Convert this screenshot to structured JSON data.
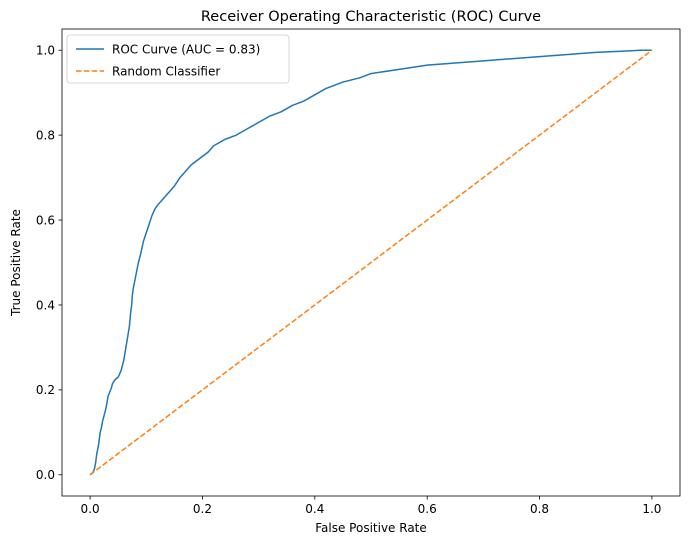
{
  "chart_data": {
    "type": "line",
    "title": "Receiver Operating Characteristic (ROC) Curve",
    "xlabel": "False Positive Rate",
    "ylabel": "True Positive Rate",
    "xlim": [
      -0.05,
      1.05
    ],
    "ylim": [
      -0.05,
      1.05
    ],
    "xticks": [
      "0.0",
      "0.2",
      "0.4",
      "0.6",
      "0.8",
      "1.0"
    ],
    "yticks": [
      "0.0",
      "0.2",
      "0.4",
      "0.6",
      "0.8",
      "1.0"
    ],
    "xtick_values": [
      0.0,
      0.2,
      0.4,
      0.6,
      0.8,
      1.0
    ],
    "ytick_values": [
      0.0,
      0.2,
      0.4,
      0.6,
      0.8,
      1.0
    ],
    "grid": false,
    "legend_position": "top-left",
    "series": [
      {
        "name": "ROC Curve (AUC = 0.83)",
        "color": "#1f77b4",
        "style": "solid",
        "x": [
          0.0,
          0.005,
          0.008,
          0.01,
          0.012,
          0.015,
          0.017,
          0.018,
          0.02,
          0.022,
          0.025,
          0.028,
          0.03,
          0.032,
          0.035,
          0.038,
          0.04,
          0.045,
          0.05,
          0.055,
          0.06,
          0.065,
          0.07,
          0.072,
          0.074,
          0.075,
          0.077,
          0.08,
          0.083,
          0.086,
          0.09,
          0.095,
          0.1,
          0.105,
          0.11,
          0.115,
          0.12,
          0.13,
          0.14,
          0.15,
          0.16,
          0.17,
          0.18,
          0.19,
          0.2,
          0.21,
          0.22,
          0.24,
          0.26,
          0.28,
          0.3,
          0.32,
          0.34,
          0.36,
          0.38,
          0.4,
          0.42,
          0.45,
          0.48,
          0.5,
          0.55,
          0.6,
          0.65,
          0.7,
          0.75,
          0.8,
          0.85,
          0.9,
          0.95,
          0.98,
          1.0
        ],
        "y": [
          0.0,
          0.005,
          0.015,
          0.03,
          0.05,
          0.07,
          0.09,
          0.1,
          0.11,
          0.125,
          0.14,
          0.155,
          0.17,
          0.185,
          0.195,
          0.205,
          0.215,
          0.225,
          0.23,
          0.245,
          0.27,
          0.31,
          0.35,
          0.38,
          0.4,
          0.42,
          0.44,
          0.46,
          0.48,
          0.5,
          0.52,
          0.55,
          0.57,
          0.59,
          0.61,
          0.625,
          0.635,
          0.65,
          0.665,
          0.68,
          0.7,
          0.715,
          0.73,
          0.74,
          0.75,
          0.76,
          0.775,
          0.79,
          0.8,
          0.815,
          0.83,
          0.845,
          0.855,
          0.87,
          0.88,
          0.895,
          0.91,
          0.925,
          0.935,
          0.945,
          0.955,
          0.965,
          0.97,
          0.975,
          0.98,
          0.985,
          0.99,
          0.995,
          0.998,
          1.0,
          1.0
        ]
      },
      {
        "name": "Random Classifier",
        "color": "#ff7f0e",
        "style": "dashed",
        "x": [
          0.0,
          1.0
        ],
        "y": [
          0.0,
          1.0
        ]
      }
    ]
  }
}
